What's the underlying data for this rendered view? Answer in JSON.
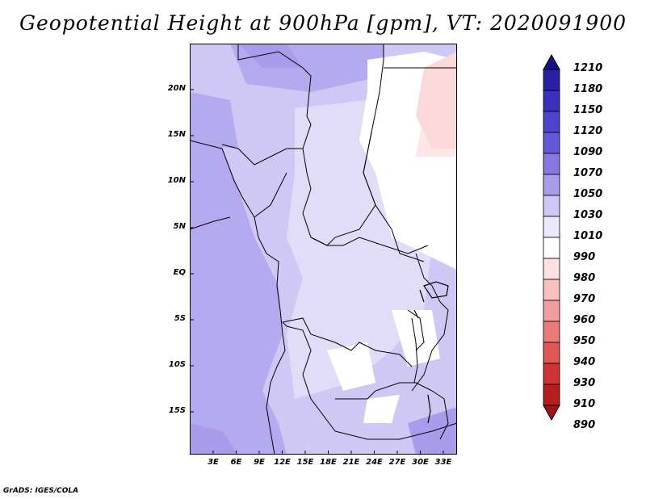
{
  "title": "Geopotential Height at 900hPa [gpm], VT: 2020091900",
  "credit": "GrADS: IGES/COLA",
  "map": {
    "variable": "Geopotential Height",
    "level": "900hPa",
    "units": "gpm",
    "valid_time": "2020091900",
    "region": "Central / West-Central Africa",
    "lat_labels": [
      "20N",
      "15N",
      "10N",
      "5N",
      "EQ",
      "5S",
      "10S",
      "15S"
    ],
    "lon_labels": [
      "3E",
      "6E",
      "9E",
      "12E",
      "15E",
      "18E",
      "21E",
      "24E",
      "27E",
      "30E",
      "33E"
    ],
    "background_color": "#ffffff",
    "border_color": "#000000"
  },
  "colorbar": {
    "labels": [
      "1210",
      "1180",
      "1150",
      "1120",
      "1090",
      "1070",
      "1050",
      "1030",
      "1010",
      "990",
      "980",
      "970",
      "960",
      "950",
      "940",
      "930",
      "910",
      "890"
    ],
    "colors": [
      "#1a0f8f",
      "#2a20a8",
      "#3a30bd",
      "#4c44cc",
      "#6458d8",
      "#8678e2",
      "#a89ceb",
      "#cfc8f4",
      "#ebe8fb",
      "#ffffff",
      "#fde0e0",
      "#f8c0bf",
      "#f29e9d",
      "#ea7b7a",
      "#df5856",
      "#cf3432",
      "#b81e1c",
      "#a01412"
    ]
  }
}
